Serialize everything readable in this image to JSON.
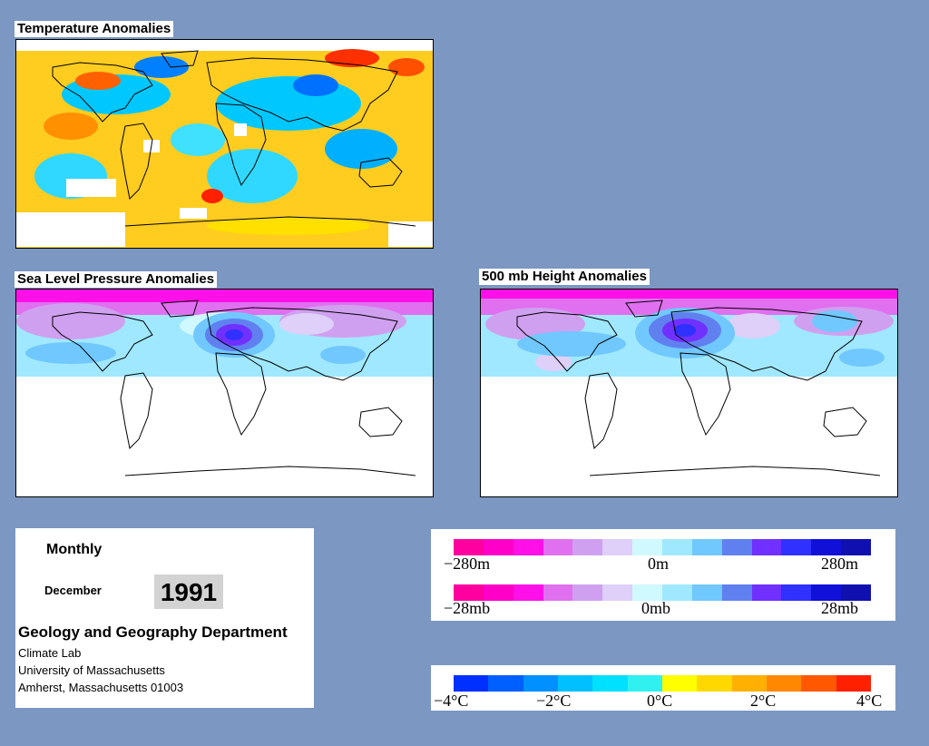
{
  "panels": {
    "temperature": {
      "title": "Temperature Anomalies"
    },
    "slp": {
      "title": "Sea Level Pressure Anomalies"
    },
    "height500": {
      "title": "500 mb Height Anomalies"
    }
  },
  "info": {
    "frequency": "Monthly",
    "month": "December",
    "year": "1991",
    "department": "Geology and Geography Department",
    "lab": "Climate Lab",
    "university": "University of Massachusetts",
    "address": "Amherst, Massachusetts 01003"
  },
  "legends": {
    "height": {
      "min": "−280m",
      "mid": "0m",
      "max": "280m"
    },
    "pressure": {
      "min": "−28mb",
      "mid": "0mb",
      "max": "28mb"
    },
    "temperature": {
      "labels": [
        "−4°C",
        "−2°C",
        "0°C",
        "2°C",
        "4°C"
      ]
    }
  },
  "colors": {
    "background": "#7b97c2",
    "anomaly_scale": [
      "#ff00a0",
      "#ff00c8",
      "#ff10e8",
      "#e070f0",
      "#d0a0f0",
      "#ded0f8",
      "#d0f8ff",
      "#a0e8ff",
      "#70c8ff",
      "#6080f0",
      "#7030ff",
      "#3030ff",
      "#1010d8",
      "#1010b0"
    ],
    "temperature_scale": [
      "#0030ff",
      "#0060ff",
      "#0090ff",
      "#00c0ff",
      "#00e0ff",
      "#30f0f0",
      "#ffff00",
      "#ffd800",
      "#ffb000",
      "#ff8800",
      "#ff5800",
      "#ff2000"
    ]
  }
}
